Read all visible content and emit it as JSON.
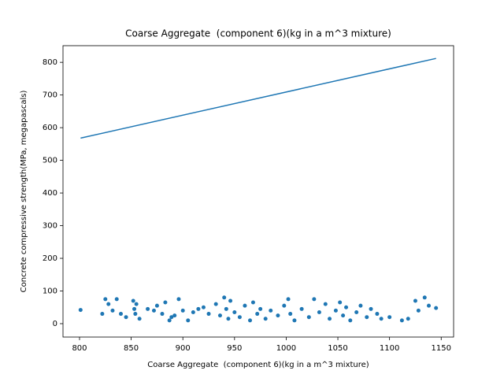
{
  "chart_data": {
    "type": "scatter",
    "title": "Coarse Aggregate  (component 6)(kg in a m^3 mixture)",
    "x_label": "Coarse Aggregate  (component 6)(kg in a m^3 mixture)",
    "y_label": "Concrete compressive strength(MPa, megapascals)",
    "xlim": [
      784,
      1162
    ],
    "ylim": [
      -41,
      851
    ],
    "xticks": [
      800,
      850,
      900,
      950,
      1000,
      1050,
      1100,
      1150
    ],
    "yticks": [
      0,
      100,
      200,
      300,
      400,
      500,
      600,
      700,
      800
    ],
    "grid": false,
    "series": [
      {
        "type": "line",
        "color": "#1f77b4",
        "x": [
          801,
          1145
        ],
        "values": [
          568,
          812
        ]
      },
      {
        "type": "scatter",
        "color": "#1f77b4",
        "x": [
          801,
          822,
          825,
          828,
          832,
          836,
          840,
          845,
          852,
          853,
          854,
          855,
          858,
          866,
          872,
          875,
          880,
          883,
          887,
          889,
          892,
          896,
          900,
          905,
          910,
          915,
          920,
          925,
          932,
          936,
          940,
          942,
          944,
          946,
          950,
          955,
          960,
          965,
          968,
          972,
          975,
          980,
          985,
          992,
          998,
          1002,
          1004,
          1008,
          1015,
          1022,
          1027,
          1032,
          1038,
          1042,
          1048,
          1052,
          1055,
          1058,
          1062,
          1068,
          1072,
          1078,
          1082,
          1088,
          1092,
          1100,
          1112,
          1118,
          1125,
          1128,
          1134,
          1138,
          1145
        ],
        "values": [
          42,
          30,
          75,
          60,
          40,
          75,
          30,
          20,
          70,
          45,
          30,
          60,
          15,
          45,
          40,
          55,
          30,
          65,
          10,
          20,
          25,
          75,
          40,
          10,
          35,
          45,
          50,
          30,
          60,
          25,
          80,
          45,
          15,
          70,
          35,
          20,
          55,
          10,
          65,
          30,
          45,
          15,
          40,
          25,
          55,
          75,
          30,
          10,
          45,
          20,
          75,
          35,
          60,
          15,
          40,
          65,
          25,
          50,
          10,
          35,
          55,
          20,
          45,
          30,
          15,
          20,
          10,
          15,
          70,
          40,
          80,
          55,
          48
        ]
      }
    ]
  }
}
